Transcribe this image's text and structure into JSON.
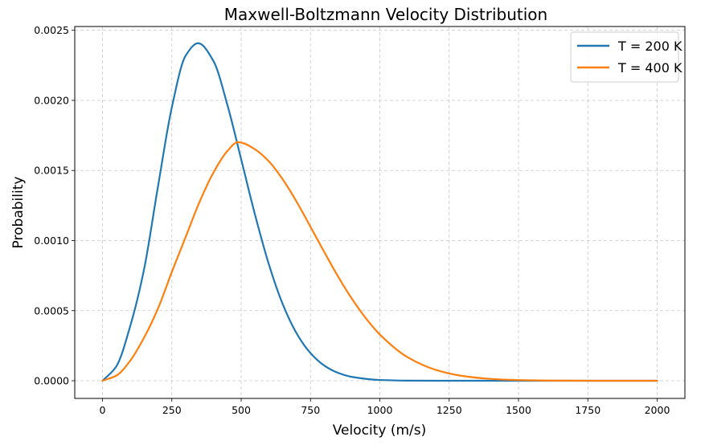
{
  "chart_data": {
    "type": "line",
    "title": "Maxwell-Boltzmann Velocity Distribution",
    "xlabel": "Velocity (m/s)",
    "ylabel": "Probability",
    "xlim": [
      -100,
      2100
    ],
    "ylim": [
      -0.000126,
      0.002527
    ],
    "xticks": [
      0,
      250,
      500,
      750,
      1000,
      1250,
      1500,
      1750,
      2000
    ],
    "xtick_labels": [
      "0",
      "250",
      "500",
      "750",
      "1000",
      "1250",
      "1500",
      "1750",
      "2000"
    ],
    "yticks": [
      0,
      0.0005,
      0.001,
      0.0015,
      0.002,
      0.0025
    ],
    "ytick_labels": [
      "0.0000",
      "0.0005",
      "0.0010",
      "0.0015",
      "0.0020",
      "0.0025"
    ],
    "grid": true,
    "legend_position": "top-right",
    "series": [
      {
        "name": "T = 200 K",
        "color": "#1f77b4",
        "x": [
          0,
          50,
          100,
          150,
          200,
          250,
          300,
          345,
          400,
          450,
          500,
          550,
          600,
          650,
          700,
          750,
          800,
          850,
          900,
          1000,
          1100,
          1200,
          1300,
          1500,
          1750,
          2000
        ],
        "y": [
          0,
          0.000103,
          0.00039,
          0.000796,
          0.001385,
          0.00195,
          0.00232,
          0.002408,
          0.002281,
          0.00197,
          0.00158,
          0.001184,
          0.00083,
          0.000546,
          0.000338,
          0.000197,
          0.000108,
          5.59e-05,
          2.73e-05,
          5.4e-06,
          8.7e-07,
          1.1e-07,
          1e-08,
          0,
          0,
          0
        ]
      },
      {
        "name": "T = 400 K",
        "color": "#ff7f0e",
        "x": [
          0,
          50,
          100,
          150,
          200,
          250,
          300,
          350,
          400,
          450,
          488,
          500,
          550,
          600,
          650,
          700,
          750,
          800,
          850,
          900,
          950,
          1000,
          1100,
          1200,
          1300,
          1400,
          1500,
          1600,
          1750,
          2000
        ],
        "y": [
          0,
          3.67e-05,
          0.000143,
          0.000308,
          0.000515,
          0.000776,
          0.001026,
          0.001276,
          0.001485,
          0.001638,
          0.001702,
          0.001699,
          0.001651,
          0.001565,
          0.001436,
          0.001277,
          0.001098,
          0.000917,
          0.000742,
          0.000583,
          0.000445,
          0.00033,
          0.000168,
          7.87e-05,
          3.37e-05,
          1.32e-05,
          4.7e-06,
          1.5e-06,
          2e-07,
          0
        ]
      }
    ]
  }
}
